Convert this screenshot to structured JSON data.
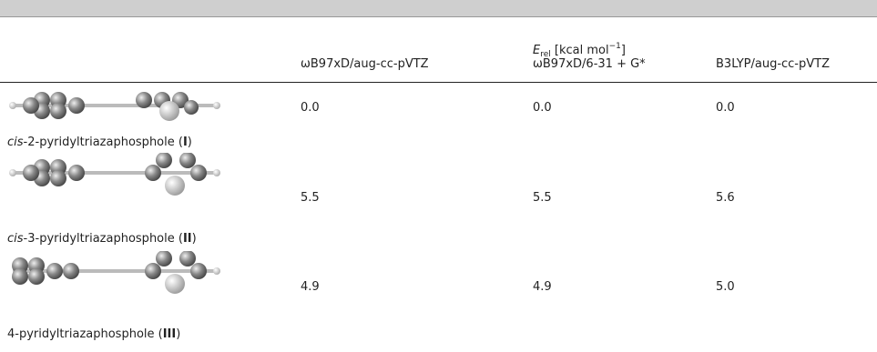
{
  "table": {
    "header": {
      "group_label": [
        {
          "text": "E",
          "style": "italic"
        },
        {
          "text": "rel",
          "style": "sub"
        },
        {
          "text": " [kcal mol"
        },
        {
          "text": "−1",
          "style": "sup"
        },
        {
          "text": "]"
        }
      ],
      "columns": [
        "ωB97xD/aug-cc-pVTZ",
        "ωB97xD/6-31 + G*",
        "B3LYP/aug-cc-pVTZ"
      ]
    },
    "rows": [
      {
        "label": [
          {
            "text": "cis",
            "style": "italic"
          },
          {
            "text": "-2-pyridyltriazaphosphole ("
          },
          {
            "text": "I",
            "style": "bold"
          },
          {
            "text": ")"
          }
        ],
        "values": [
          "0.0",
          "0.0",
          "0.0"
        ]
      },
      {
        "label": [
          {
            "text": "cis",
            "style": "italic"
          },
          {
            "text": "-3-pyridyltriazaphosphole ("
          },
          {
            "text": "II",
            "style": "bold"
          },
          {
            "text": ")"
          }
        ],
        "values": [
          "5.5",
          "5.5",
          "5.6"
        ]
      },
      {
        "label": [
          {
            "text": "4-pyridyltriazaphosphole ("
          },
          {
            "text": "III",
            "style": "bold"
          },
          {
            "text": ")"
          }
        ],
        "values": [
          "4.9",
          "4.9",
          "5.0"
        ]
      }
    ]
  }
}
